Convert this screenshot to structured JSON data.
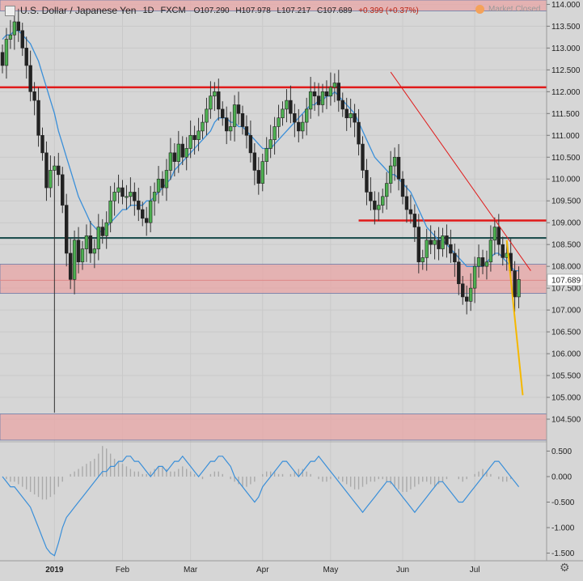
{
  "header": {
    "symbol": "U.S. Dollar / Japanese Yen",
    "interval": "1D",
    "exchange": "FXCM",
    "open": "O107.290",
    "high": "H107.978",
    "low": "L107.217",
    "close": "C107.689",
    "change": "+0.399 (+0.37%)",
    "market_status": "Market Closed"
  },
  "colors": {
    "up": "#4caf50",
    "down": "#222222",
    "ma": "#3a8fd9",
    "zone": "#e8a6a6",
    "resistance": "#e01a1a",
    "support": "#1f4f4f",
    "projection": "#f5b800",
    "osc": "#3a8fd9",
    "hist": "#aaaaaa"
  },
  "chart_data": [
    {
      "type": "candlestick",
      "price_axis": {
        "range": [
          104.0,
          114.1
        ],
        "ticks": [
          "114.000",
          "113.500",
          "113.000",
          "112.500",
          "112.000",
          "111.500",
          "111.000",
          "110.500",
          "110.000",
          "109.500",
          "109.000",
          "108.500",
          "108.000",
          "107.500",
          "107.000",
          "106.500",
          "106.000",
          "105.500",
          "105.000",
          "104.500"
        ]
      },
      "last_price": "107.689",
      "x_labels": [
        "2019",
        "Feb",
        "Mar",
        "Apr",
        "May",
        "Jun",
        "Jul"
      ],
      "closes": [
        112.6,
        113.2,
        113.3,
        113.6,
        113.4,
        113.0,
        112.6,
        112.0,
        111.8,
        111.0,
        110.6,
        109.8,
        110.2,
        110.3,
        110.1,
        109.4,
        108.3,
        107.7,
        108.6,
        108.1,
        108.4,
        108.7,
        108.3,
        108.4,
        108.9,
        108.7,
        109.0,
        109.5,
        109.7,
        109.8,
        109.6,
        109.6,
        109.7,
        109.5,
        109.3,
        109.1,
        109.0,
        109.5,
        109.7,
        110.0,
        109.8,
        110.2,
        110.6,
        110.4,
        110.8,
        110.5,
        110.7,
        111.0,
        110.9,
        111.1,
        111.3,
        111.6,
        111.9,
        112.0,
        111.6,
        111.4,
        111.1,
        111.2,
        111.7,
        111.5,
        111.2,
        111.0,
        110.6,
        110.2,
        109.9,
        110.4,
        110.7,
        110.9,
        111.2,
        111.4,
        111.6,
        111.8,
        111.5,
        111.3,
        111.1,
        111.3,
        111.6,
        112.0,
        111.9,
        111.7,
        112.0,
        111.9,
        112.1,
        112.2,
        111.8,
        111.6,
        111.4,
        111.5,
        111.3,
        110.8,
        110.2,
        109.7,
        109.5,
        109.3,
        109.4,
        109.6,
        109.9,
        110.3,
        110.5,
        110.0,
        109.6,
        109.3,
        109.2,
        108.9,
        108.1,
        108.2,
        108.6,
        108.5,
        108.6,
        108.4,
        108.7,
        108.5,
        108.3,
        108.1,
        107.6,
        107.3,
        107.2,
        107.5,
        108.0,
        108.2,
        108.0,
        108.1,
        108.6,
        108.9,
        108.5,
        108.2,
        108.3,
        107.9,
        107.3,
        107.7
      ],
      "moving_average": [
        113.2,
        113.3,
        113.3,
        113.4,
        113.4,
        113.3,
        113.2,
        113.1,
        112.9,
        112.7,
        112.4,
        112.1,
        111.8,
        111.5,
        111.1,
        110.8,
        110.5,
        110.2,
        109.9,
        109.6,
        109.4,
        109.2,
        109.0,
        108.9,
        108.8,
        108.8,
        108.9,
        109.0,
        109.1,
        109.2,
        109.3,
        109.3,
        109.4,
        109.4,
        109.4,
        109.4,
        109.5,
        109.5,
        109.6,
        109.7,
        109.8,
        109.9,
        110.0,
        110.2,
        110.3,
        110.4,
        110.5,
        110.6,
        110.7,
        110.8,
        110.9,
        111.0,
        111.1,
        111.3,
        111.4,
        111.4,
        111.4,
        111.3,
        111.3,
        111.2,
        111.2,
        111.1,
        111.0,
        110.9,
        110.8,
        110.7,
        110.7,
        110.7,
        110.8,
        110.9,
        111.0,
        111.1,
        111.2,
        111.3,
        111.4,
        111.5,
        111.6,
        111.7,
        111.7,
        111.8,
        111.8,
        111.9,
        111.9,
        112.0,
        111.9,
        111.8,
        111.7,
        111.6,
        111.5,
        111.3,
        111.1,
        110.9,
        110.7,
        110.5,
        110.4,
        110.3,
        110.2,
        110.1,
        110.1,
        110.0,
        109.9,
        109.8,
        109.7,
        109.5,
        109.3,
        109.1,
        108.9,
        108.8,
        108.7,
        108.6,
        108.6,
        108.5,
        108.4,
        108.3,
        108.2,
        108.1,
        108.0,
        108.0,
        108.0,
        108.0,
        108.0,
        108.1,
        108.2,
        108.3,
        108.3,
        108.2,
        108.1,
        108.0,
        107.9,
        107.9
      ],
      "lines": [
        {
          "label": "resistance",
          "price": 112.1
        },
        {
          "label": "resistance",
          "price": 109.05
        },
        {
          "label": "support",
          "price": 108.65
        }
      ],
      "zones": [
        {
          "label": "upper zone",
          "range": [
            113.85,
            114.1
          ]
        },
        {
          "label": "middle zone",
          "range": [
            107.38,
            108.05
          ]
        },
        {
          "label": "lower zone",
          "range": [
            104.02,
            104.62
          ]
        }
      ],
      "trendline": {
        "from": [
          97,
          112.45
        ],
        "to": [
          132,
          107.9
        ]
      },
      "projection": {
        "from": [
          126,
          108.6
        ],
        "to": [
          130,
          105.05
        ]
      }
    },
    {
      "type": "line",
      "name": "oscillator",
      "y_axis": {
        "range": [
          -1.65,
          0.65
        ],
        "ticks": [
          "0.500",
          "0.000",
          "-0.500",
          "-1.000",
          "-1.500"
        ]
      },
      "values": [
        0.0,
        -0.1,
        -0.2,
        -0.2,
        -0.3,
        -0.4,
        -0.5,
        -0.6,
        -0.8,
        -1.0,
        -1.2,
        -1.4,
        -1.5,
        -1.55,
        -1.3,
        -1.0,
        -0.8,
        -0.7,
        -0.6,
        -0.5,
        -0.4,
        -0.3,
        -0.2,
        -0.1,
        0.0,
        0.1,
        0.1,
        0.2,
        0.2,
        0.3,
        0.3,
        0.4,
        0.4,
        0.3,
        0.3,
        0.2,
        0.1,
        0.0,
        0.1,
        0.2,
        0.2,
        0.1,
        0.2,
        0.3,
        0.3,
        0.4,
        0.3,
        0.2,
        0.1,
        0.0,
        0.1,
        0.2,
        0.3,
        0.3,
        0.4,
        0.4,
        0.3,
        0.2,
        0.0,
        -0.1,
        -0.2,
        -0.3,
        -0.4,
        -0.5,
        -0.4,
        -0.2,
        -0.1,
        0.0,
        0.1,
        0.2,
        0.3,
        0.3,
        0.2,
        0.1,
        0.0,
        0.1,
        0.2,
        0.3,
        0.3,
        0.4,
        0.3,
        0.2,
        0.1,
        0.0,
        -0.1,
        -0.2,
        -0.3,
        -0.4,
        -0.5,
        -0.6,
        -0.7,
        -0.6,
        -0.5,
        -0.4,
        -0.3,
        -0.2,
        -0.1,
        -0.1,
        -0.2,
        -0.3,
        -0.4,
        -0.5,
        -0.6,
        -0.7,
        -0.6,
        -0.5,
        -0.4,
        -0.3,
        -0.2,
        -0.1,
        -0.1,
        -0.2,
        -0.3,
        -0.4,
        -0.5,
        -0.5,
        -0.4,
        -0.3,
        -0.2,
        -0.1,
        0.0,
        0.1,
        0.2,
        0.3,
        0.3,
        0.2,
        0.1,
        0.0,
        -0.1,
        -0.2
      ],
      "histogram": [
        0.0,
        -0.05,
        -0.1,
        -0.1,
        -0.15,
        -0.2,
        -0.25,
        -0.3,
        -0.35,
        -0.4,
        -0.45,
        -0.45,
        -0.4,
        -0.35,
        -0.2,
        -0.1,
        0.0,
        0.05,
        0.1,
        0.15,
        0.2,
        0.25,
        0.3,
        0.35,
        0.45,
        0.6,
        0.55,
        0.45,
        0.35,
        0.3,
        0.25,
        0.2,
        0.15,
        0.1,
        0.1,
        0.05,
        0.05,
        0.1,
        0.15,
        0.2,
        0.2,
        0.15,
        0.1,
        0.1,
        0.15,
        0.2,
        0.15,
        0.1,
        0.05,
        0.0,
        -0.05,
        0.0,
        0.05,
        0.1,
        0.1,
        0.05,
        0.0,
        -0.05,
        -0.1,
        -0.15,
        -0.2,
        -0.2,
        -0.15,
        -0.1,
        0.0,
        0.05,
        0.1,
        0.1,
        0.1,
        0.05,
        0.05,
        0.0,
        0.05,
        0.1,
        0.15,
        0.15,
        0.1,
        0.05,
        0.0,
        -0.05,
        -0.1,
        -0.1,
        -0.05,
        0.0,
        -0.05,
        -0.1,
        -0.15,
        -0.2,
        -0.25,
        -0.25,
        -0.2,
        -0.15,
        -0.1,
        -0.1,
        -0.05,
        -0.05,
        -0.1,
        -0.15,
        -0.2,
        -0.25,
        -0.3,
        -0.3,
        -0.25,
        -0.2,
        -0.15,
        -0.1,
        -0.1,
        -0.15,
        -0.2,
        -0.15,
        -0.1,
        -0.05,
        0.0,
        0.0,
        -0.05,
        -0.1,
        -0.05,
        0.0,
        0.05,
        0.1,
        0.15,
        0.1,
        0.05,
        0.0,
        -0.05,
        -0.1,
        -0.1,
        -0.05,
        0.0
      ]
    }
  ]
}
